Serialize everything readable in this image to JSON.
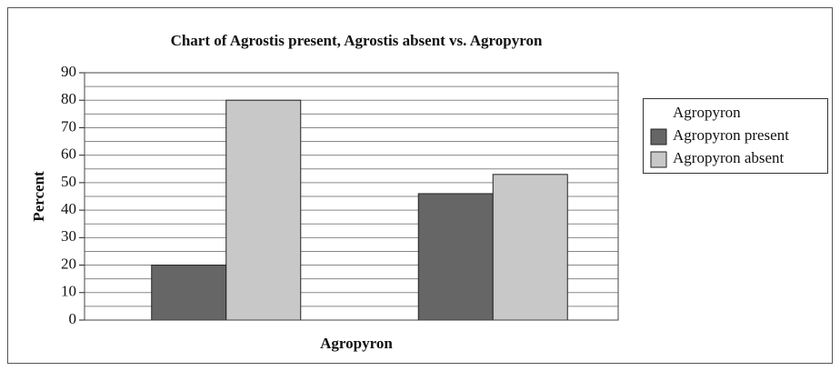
{
  "chart_data": {
    "type": "bar",
    "title": "Chart of Agrostis present, Agrostis absent vs. Agropyron",
    "x_label": "Agropyron",
    "y_label": "Percent",
    "categories": [
      null,
      null
    ],
    "series": [
      {
        "name": "Agropyron present",
        "color": "#666666",
        "values": [
          20,
          46
        ]
      },
      {
        "name": "Agropyron absent",
        "color": "#c8c8c8",
        "values": [
          80,
          53
        ]
      }
    ],
    "legend_title": "Agropyron",
    "legend": "right",
    "ylim": [
      0,
      90
    ],
    "yticks": [
      0,
      10,
      20,
      30,
      40,
      50,
      60,
      70,
      80,
      90
    ],
    "minor_yticks": [
      5,
      15,
      25,
      35,
      45,
      55,
      65,
      75,
      85
    ],
    "grid": true
  }
}
